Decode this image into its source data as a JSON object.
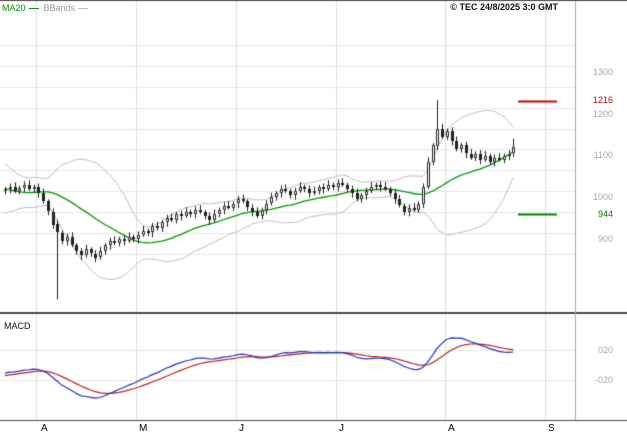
{
  "header": {
    "copyright": "© TEC 24/8/2025 3:0 GMT"
  },
  "chart_data": {
    "type": "candlestick",
    "title": "",
    "price_panel": {
      "indicators": {
        "ma_label": "MA20",
        "bands_label": "BBands"
      },
      "y_tick_labels": [
        "1300",
        "1200",
        "1100",
        "1000",
        "900"
      ],
      "y_tick_values": [
        1300,
        1200,
        1100,
        1000,
        900
      ],
      "grid": {
        "min": 850,
        "max": 1350,
        "step": 50
      },
      "levels": {
        "resistance": {
          "label": "1216",
          "value": 1216,
          "color": "#cc0000"
        },
        "support": {
          "label": "944",
          "value": 944,
          "color": "#008000"
        }
      },
      "warmup_closes": [
        1060,
        1065,
        1055,
        1050,
        1040,
        1020,
        1000,
        980,
        960,
        950,
        965,
        985,
        1000,
        1010,
        1005,
        1000,
        1010,
        1005,
        1000,
        1005
      ],
      "ohlc": [
        [
          1000,
          1010,
          992,
          1005
        ],
        [
          1005,
          1018,
          994,
          1010
        ],
        [
          1010,
          1021,
          995,
          1000
        ],
        [
          1000,
          1013,
          992,
          1008
        ],
        [
          1008,
          1023,
          997,
          1015
        ],
        [
          1015,
          1026,
          1000,
          1005
        ],
        [
          1005,
          1015,
          997,
          1010
        ],
        [
          1010,
          1018,
          984,
          995
        ],
        [
          995,
          1006,
          970,
          975
        ],
        [
          975,
          980,
          942,
          950
        ],
        [
          950,
          958,
          909,
          920
        ],
        [
          920,
          931,
          740,
          900
        ],
        [
          900,
          905,
          872,
          880
        ],
        [
          880,
          898,
          869,
          890
        ],
        [
          890,
          901,
          865,
          870
        ],
        [
          870,
          875,
          847,
          855
        ],
        [
          855,
          863,
          834,
          845
        ],
        [
          845,
          871,
          840,
          860
        ],
        [
          860,
          865,
          842,
          850
        ],
        [
          850,
          858,
          829,
          840
        ],
        [
          840,
          866,
          835,
          855
        ],
        [
          855,
          875,
          847,
          870
        ],
        [
          870,
          888,
          859,
          880
        ],
        [
          880,
          891,
          870,
          875
        ],
        [
          875,
          890,
          867,
          885
        ],
        [
          885,
          893,
          869,
          880
        ],
        [
          880,
          901,
          875,
          890
        ],
        [
          890,
          895,
          877,
          885
        ],
        [
          885,
          903,
          874,
          895
        ],
        [
          895,
          916,
          890,
          905
        ],
        [
          905,
          910,
          892,
          900
        ],
        [
          900,
          923,
          889,
          915
        ],
        [
          915,
          926,
          905,
          910
        ],
        [
          910,
          930,
          902,
          925
        ],
        [
          925,
          943,
          914,
          935
        ],
        [
          935,
          946,
          925,
          930
        ],
        [
          930,
          950,
          922,
          945
        ],
        [
          945,
          953,
          929,
          940
        ],
        [
          940,
          961,
          935,
          950
        ],
        [
          950,
          955,
          937,
          945
        ],
        [
          945,
          963,
          934,
          955
        ],
        [
          955,
          966,
          945,
          950
        ],
        [
          950,
          955,
          932,
          940
        ],
        [
          940,
          948,
          919,
          930
        ],
        [
          930,
          956,
          925,
          945
        ],
        [
          945,
          960,
          937,
          955
        ],
        [
          955,
          973,
          944,
          965
        ],
        [
          965,
          976,
          955,
          960
        ],
        [
          960,
          975,
          952,
          970
        ],
        [
          970,
          988,
          959,
          980
        ],
        [
          980,
          991,
          970,
          975
        ],
        [
          975,
          980,
          952,
          960
        ],
        [
          960,
          968,
          939,
          950
        ],
        [
          950,
          961,
          935,
          940
        ],
        [
          940,
          960,
          932,
          955
        ],
        [
          955,
          978,
          944,
          970
        ],
        [
          970,
          996,
          965,
          985
        ],
        [
          985,
          1000,
          977,
          995
        ],
        [
          995,
          1013,
          984,
          1005
        ],
        [
          1005,
          1016,
          995,
          1000
        ],
        [
          1000,
          1005,
          982,
          990
        ],
        [
          990,
          1008,
          979,
          1000
        ],
        [
          1000,
          1021,
          995,
          1010
        ],
        [
          1010,
          1015,
          997,
          1005
        ],
        [
          1005,
          1013,
          984,
          995
        ],
        [
          995,
          1011,
          990,
          1000
        ],
        [
          1000,
          1015,
          992,
          1010
        ],
        [
          1010,
          1018,
          994,
          1005
        ],
        [
          1005,
          1026,
          1000,
          1015
        ],
        [
          1015,
          1020,
          1002,
          1010
        ],
        [
          1010,
          1028,
          999,
          1020
        ],
        [
          1020,
          1031,
          1010,
          1015
        ],
        [
          1015,
          1020,
          997,
          1005
        ],
        [
          1005,
          1013,
          984,
          995
        ],
        [
          995,
          1006,
          975,
          980
        ],
        [
          980,
          995,
          972,
          990
        ],
        [
          990,
          1008,
          979,
          1000
        ],
        [
          1000,
          1021,
          995,
          1010
        ],
        [
          1010,
          1020,
          1002,
          1015
        ],
        [
          1015,
          1023,
          999,
          1010
        ],
        [
          1010,
          1021,
          1000,
          1005
        ],
        [
          1005,
          1010,
          987,
          995
        ],
        [
          995,
          1003,
          969,
          980
        ],
        [
          980,
          991,
          960,
          965
        ],
        [
          965,
          970,
          942,
          950
        ],
        [
          950,
          968,
          939,
          960
        ],
        [
          960,
          971,
          950,
          955
        ],
        [
          955,
          975,
          947,
          970
        ],
        [
          970,
          1018,
          959,
          1010
        ],
        [
          1010,
          1081,
          1005,
          1070
        ],
        [
          1070,
          1115,
          1062,
          1110
        ],
        [
          1110,
          1218,
          1098,
          1150
        ],
        [
          1150,
          1161,
          1125,
          1130
        ],
        [
          1130,
          1150,
          1122,
          1145
        ],
        [
          1145,
          1153,
          1109,
          1120
        ],
        [
          1120,
          1131,
          1095,
          1100
        ],
        [
          1100,
          1115,
          1092,
          1110
        ],
        [
          1110,
          1118,
          1079,
          1090
        ],
        [
          1090,
          1101,
          1075,
          1080
        ],
        [
          1080,
          1095,
          1072,
          1090
        ],
        [
          1090,
          1098,
          1064,
          1075
        ],
        [
          1075,
          1096,
          1070,
          1085
        ],
        [
          1085,
          1090,
          1062,
          1070
        ],
        [
          1070,
          1088,
          1059,
          1080
        ],
        [
          1080,
          1091,
          1070,
          1075
        ],
        [
          1075,
          1090,
          1067,
          1085
        ],
        [
          1085,
          1098,
          1074,
          1090
        ],
        [
          1090,
          1125,
          1082,
          1105
        ]
      ]
    },
    "macd_panel": {
      "label": "MACD",
      "y_tick_labels": [
        "020",
        "-020"
      ]
    },
    "x_axis": {
      "month_labels": [
        "A",
        "M",
        "J",
        "J",
        "A",
        "S"
      ],
      "month_start_bars": [
        7,
        28,
        49,
        70,
        93,
        114
      ]
    },
    "colors": {
      "ma": "#009900",
      "bands": "#c0c0c0",
      "candle": "#222222",
      "macd_line": "#2233bb",
      "signal_line": "#bb2222",
      "grid": "#e7e7e7",
      "axis_text": "#a8a8a8",
      "resistance": "#cc0000",
      "support": "#008000"
    }
  }
}
